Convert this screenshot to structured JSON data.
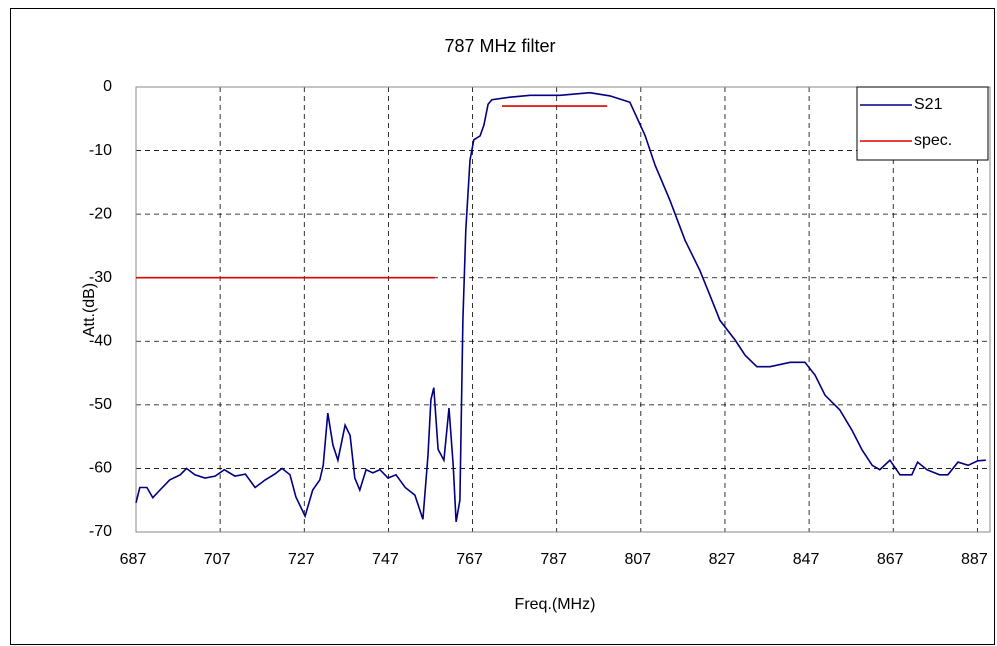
{
  "chart_data": {
    "type": "line",
    "title": "787 MHz filter",
    "xlabel": "Freq.(MHz)",
    "ylabel": "Att.(dB)",
    "xlim": [
      687,
      890
    ],
    "ylim": [
      -70,
      0
    ],
    "xticks": [
      687,
      707,
      727,
      747,
      767,
      787,
      807,
      827,
      847,
      867,
      887
    ],
    "yticks": [
      0,
      -10,
      -20,
      -30,
      -40,
      -50,
      -60,
      -70
    ],
    "grid": true,
    "legend": "upper right",
    "series": [
      {
        "name": "S21",
        "color": "#000080",
        "x": [
          687,
          687.9,
          689.6,
          691,
          692.7,
          695,
          697.5,
          699,
          701,
          703.4,
          705.8,
          708,
          710.5,
          713,
          715.3,
          717.7,
          720,
          721.7,
          723.6,
          725,
          727.2,
          729,
          730.7,
          731.5,
          732.6,
          733.8,
          735,
          736.7,
          737.9,
          739,
          740.2,
          741.7,
          743.3,
          745,
          746.9,
          748.8,
          751,
          753.3,
          755.2,
          756.4,
          757.1,
          757.8,
          758.8,
          760.2,
          761.4,
          762.4,
          763.1,
          764,
          764.7,
          765.4,
          766.4,
          767.3,
          768.8,
          769.7,
          770.7,
          771.6,
          775.9,
          780.7,
          787.8,
          794.9,
          799.7,
          804.4,
          808,
          810.4,
          813.9,
          817.5,
          821,
          823.4,
          825.8,
          829.4,
          831.8,
          834.6,
          837.7,
          842.5,
          846,
          848.4,
          850.8,
          854.3,
          857.2,
          859.6,
          862,
          863.8,
          866.2,
          868.6,
          871.4,
          872.8,
          875,
          878,
          880,
          882.4,
          884.8,
          887.1,
          889
        ],
        "values": [
          -65.4,
          -63,
          -63,
          -64.6,
          -63.4,
          -61.8,
          -61,
          -60,
          -61,
          -61.5,
          -61.2,
          -60.2,
          -61.2,
          -60.9,
          -63,
          -61.8,
          -60.9,
          -60,
          -61,
          -64.5,
          -67.5,
          -63.4,
          -61.8,
          -59.5,
          -51.3,
          -56.3,
          -58.7,
          -53.2,
          -54.8,
          -61.5,
          -63.4,
          -60.2,
          -60.7,
          -60.2,
          -61.5,
          -61,
          -63,
          -64.2,
          -68,
          -57.9,
          -49.2,
          -47.3,
          -57,
          -58.7,
          -50.5,
          -59.5,
          -68.4,
          -65,
          -36.6,
          -22.5,
          -11.5,
          -8.3,
          -7.7,
          -6,
          -2.7,
          -2,
          -1.6,
          -1.3,
          -1.3,
          -0.9,
          -1.4,
          -2.4,
          -7.6,
          -12.3,
          -17.8,
          -24.1,
          -28.8,
          -32.7,
          -36.7,
          -39.8,
          -42.2,
          -44,
          -44,
          -43.3,
          -43.3,
          -45.3,
          -48.5,
          -50.8,
          -54,
          -57.1,
          -59.5,
          -60.2,
          -58.7,
          -61,
          -61,
          -59,
          -60.2,
          -61,
          -61,
          -59,
          -59.5,
          -58.8,
          -58.7
        ]
      },
      {
        "name": "spec.",
        "color": "#e00000",
        "x": [
          687,
          758,
          null,
          774,
          799
        ],
        "values": [
          -30,
          -30,
          null,
          -3,
          -3
        ]
      }
    ]
  }
}
